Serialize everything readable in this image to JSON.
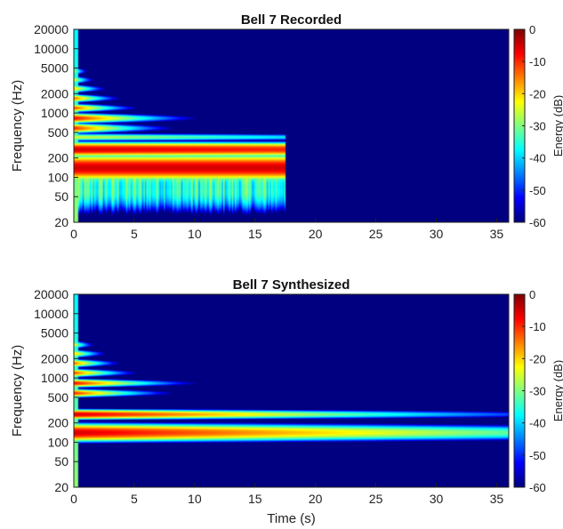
{
  "chart_data": [
    {
      "type": "heatmap",
      "title": "Bell 7 Recorded",
      "xlabel": "",
      "ylabel": "Frequency (Hz)",
      "xlim": [
        0,
        36
      ],
      "ylim": [
        20,
        20000
      ],
      "yscale": "log",
      "xticks": [
        0,
        5,
        10,
        15,
        20,
        25,
        30,
        35
      ],
      "yticks": [
        20,
        50,
        100,
        200,
        500,
        1000,
        2000,
        5000,
        10000,
        20000
      ],
      "signal_end_s": 17.5,
      "bands": [
        {
          "freq_hz": 60,
          "level_db": -35,
          "decay_per_s": 0,
          "end_s": 17.5,
          "width": 0.32
        },
        {
          "freq_hz": 80,
          "level_db": -35,
          "decay_per_s": 0,
          "end_s": 17.5,
          "width": 0.32
        },
        {
          "freq_hz": 100,
          "level_db": -32,
          "decay_per_s": 0,
          "end_s": 17.5,
          "width": 0.25
        },
        {
          "freq_hz": 140,
          "level_db": -5,
          "decay_per_s": 0,
          "end_s": 17.5,
          "width": 0.16
        },
        {
          "freq_hz": 270,
          "level_db": -5,
          "decay_per_s": 0.25,
          "end_s": 17.5,
          "width": 0.09
        },
        {
          "freq_hz": 420,
          "level_db": -25,
          "decay_per_s": 0.8,
          "end_s": 17.5,
          "width": 0.05
        },
        {
          "freq_hz": 580,
          "level_db": -10,
          "decay_per_s": 6,
          "end_s": 17.5,
          "width": 0.06
        },
        {
          "freq_hz": 830,
          "level_db": -8,
          "decay_per_s": 5,
          "end_s": 17.5,
          "width": 0.06
        },
        {
          "freq_hz": 1200,
          "level_db": -12,
          "decay_per_s": 9,
          "end_s": 17.5,
          "width": 0.05
        },
        {
          "freq_hz": 1700,
          "level_db": -14,
          "decay_per_s": 12,
          "end_s": 17.5,
          "width": 0.05
        },
        {
          "freq_hz": 2400,
          "level_db": -20,
          "decay_per_s": 15,
          "end_s": 17.5,
          "width": 0.05
        },
        {
          "freq_hz": 3300,
          "level_db": -24,
          "decay_per_s": 22,
          "end_s": 17.5,
          "width": 0.05
        },
        {
          "freq_hz": 4500,
          "level_db": -28,
          "decay_per_s": 30,
          "end_s": 17.5,
          "width": 0.05
        }
      ]
    },
    {
      "type": "heatmap",
      "title": "Bell 7 Synthesized",
      "xlabel": "Time (s)",
      "ylabel": "Frequency (Hz)",
      "xlim": [
        0,
        36
      ],
      "ylim": [
        20,
        20000
      ],
      "yscale": "log",
      "xticks": [
        0,
        5,
        10,
        15,
        20,
        25,
        30,
        35
      ],
      "yticks": [
        20,
        50,
        100,
        200,
        500,
        1000,
        2000,
        5000,
        10000,
        20000
      ],
      "signal_end_s": 36,
      "bands": [
        {
          "freq_hz": 140,
          "level_db": -5,
          "decay_per_s": 0.75,
          "end_s": 36,
          "width": 0.11
        },
        {
          "freq_hz": 270,
          "level_db": -5,
          "decay_per_s": 1.2,
          "end_s": 36,
          "width": 0.06
        },
        {
          "freq_hz": 580,
          "level_db": -10,
          "decay_per_s": 6,
          "end_s": 36,
          "width": 0.05
        },
        {
          "freq_hz": 830,
          "level_db": -8,
          "decay_per_s": 5,
          "end_s": 36,
          "width": 0.05
        },
        {
          "freq_hz": 1200,
          "level_db": -12,
          "decay_per_s": 9,
          "end_s": 36,
          "width": 0.05
        },
        {
          "freq_hz": 1700,
          "level_db": -14,
          "decay_per_s": 12,
          "end_s": 36,
          "width": 0.05
        },
        {
          "freq_hz": 2400,
          "level_db": -20,
          "decay_per_s": 15,
          "end_s": 36,
          "width": 0.05
        },
        {
          "freq_hz": 3300,
          "level_db": -24,
          "decay_per_s": 22,
          "end_s": 36,
          "width": 0.05
        }
      ]
    }
  ],
  "colorbars": [
    {
      "label": "Energy (dB)",
      "range": [
        -60,
        0
      ],
      "ticks": [
        0,
        -10,
        -20,
        -30,
        -40,
        -50,
        -60
      ],
      "colormap": "jet"
    },
    {
      "label": "Energy (dB)",
      "range": [
        -60,
        0
      ],
      "ticks": [
        0,
        -10,
        -20,
        -30,
        -40,
        -50,
        -60
      ],
      "colormap": "jet"
    }
  ]
}
